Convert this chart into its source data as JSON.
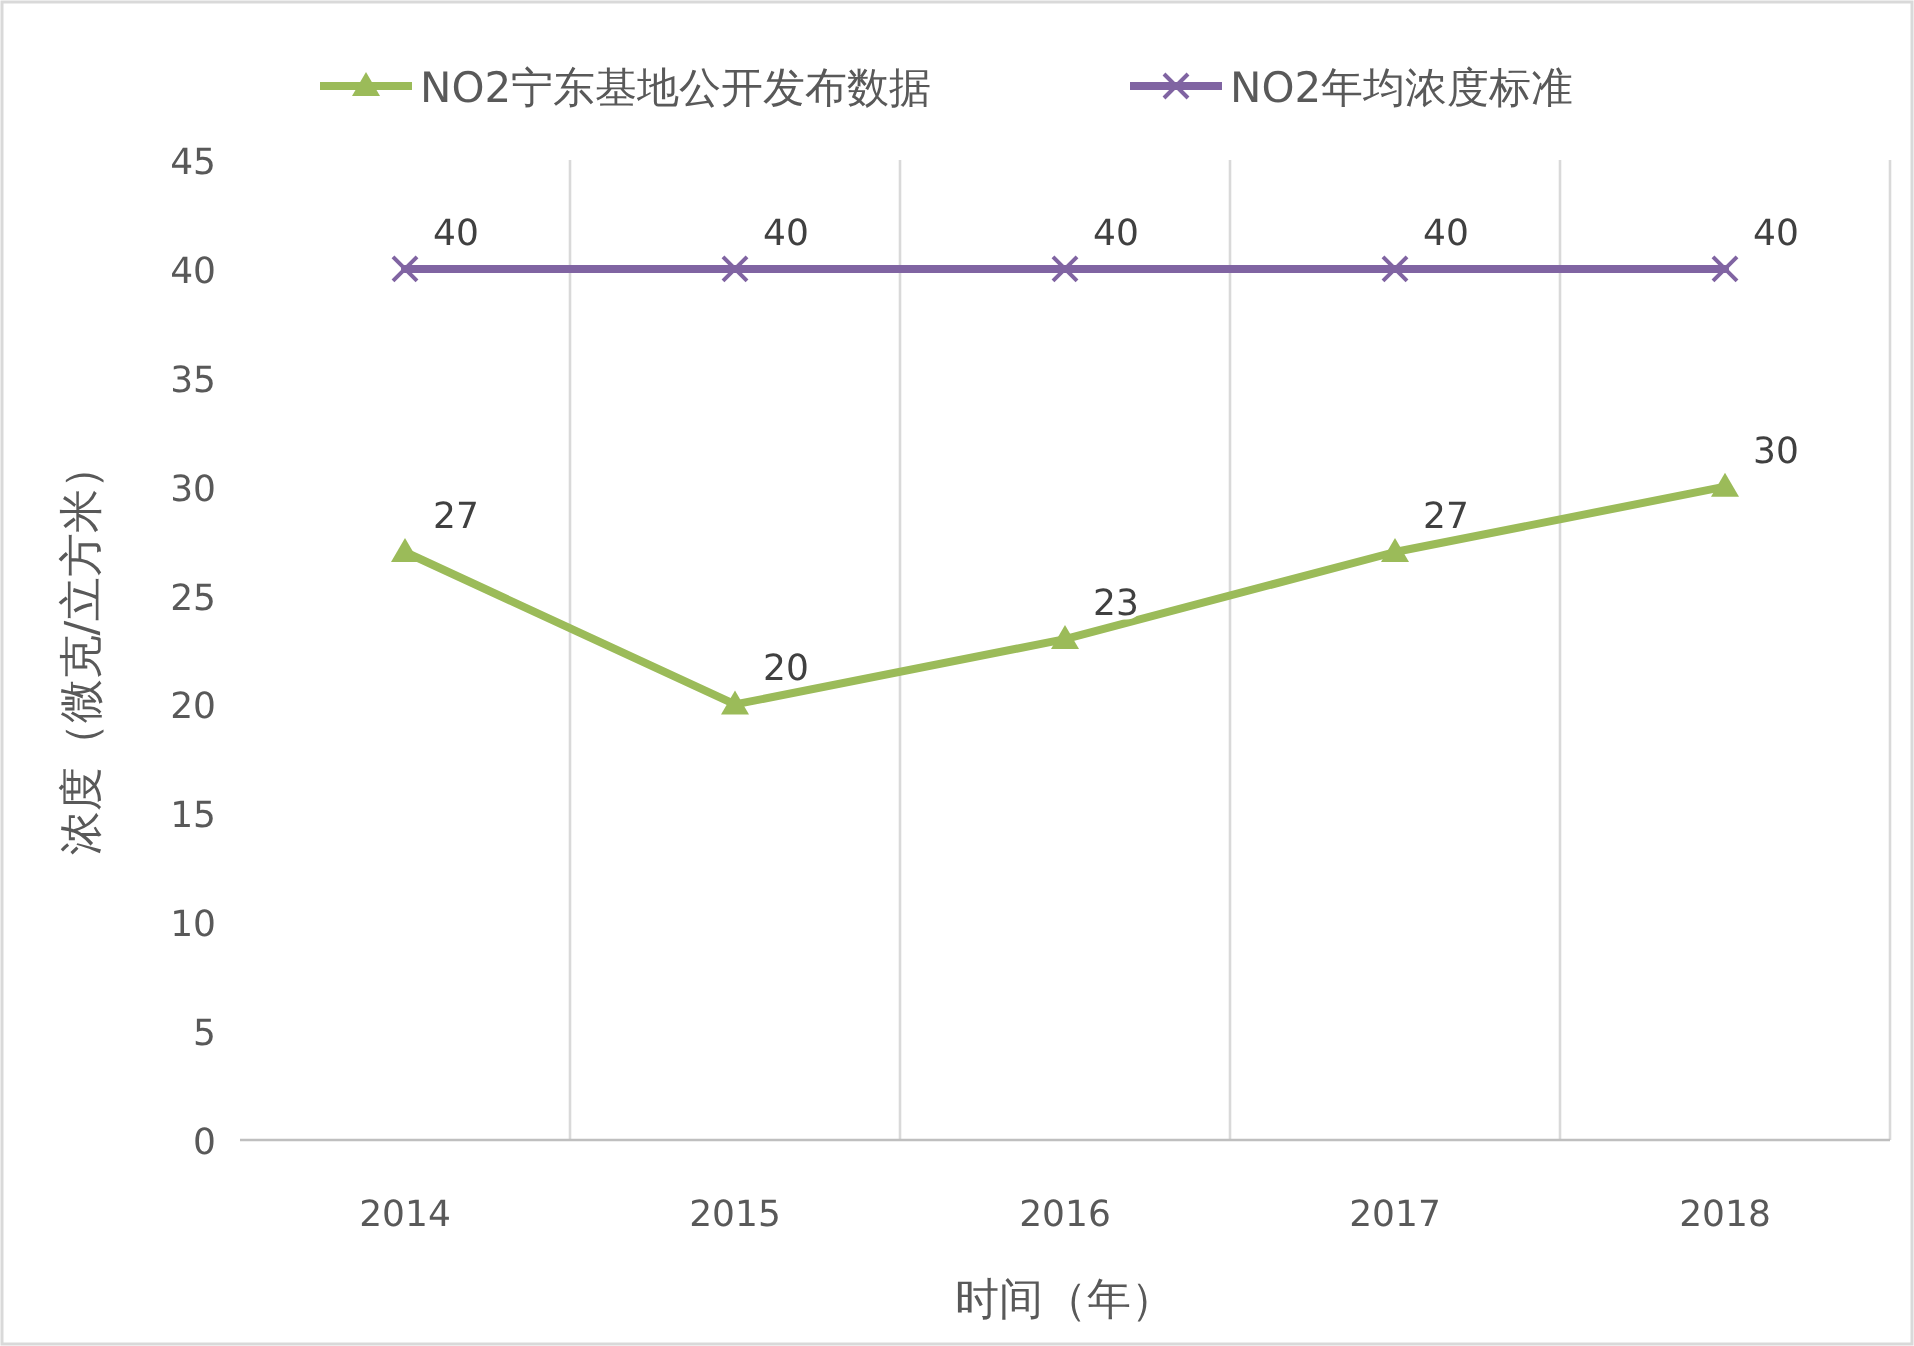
{
  "chart_data": {
    "type": "line",
    "xlabel": "时间（年）",
    "ylabel": "浓度（微克/立方米）",
    "categories": [
      "2014",
      "2015",
      "2016",
      "2017",
      "2018"
    ],
    "series": [
      {
        "name": "NO2宁东基地公开发布数据",
        "color": "#9bbb59",
        "values": [
          27,
          20,
          23,
          27,
          30
        ],
        "marker": "triangle"
      },
      {
        "name": "NO2年均浓度标准",
        "color": "#8064a2",
        "values": [
          40,
          40,
          40,
          40,
          40
        ],
        "marker": "cross"
      }
    ],
    "ylim": [
      0,
      45
    ],
    "yticks": [
      0,
      5,
      10,
      15,
      20,
      25,
      30,
      35,
      40,
      45
    ],
    "grid": "x",
    "legend": "top",
    "data_labels": true,
    "line_style": "solid"
  }
}
